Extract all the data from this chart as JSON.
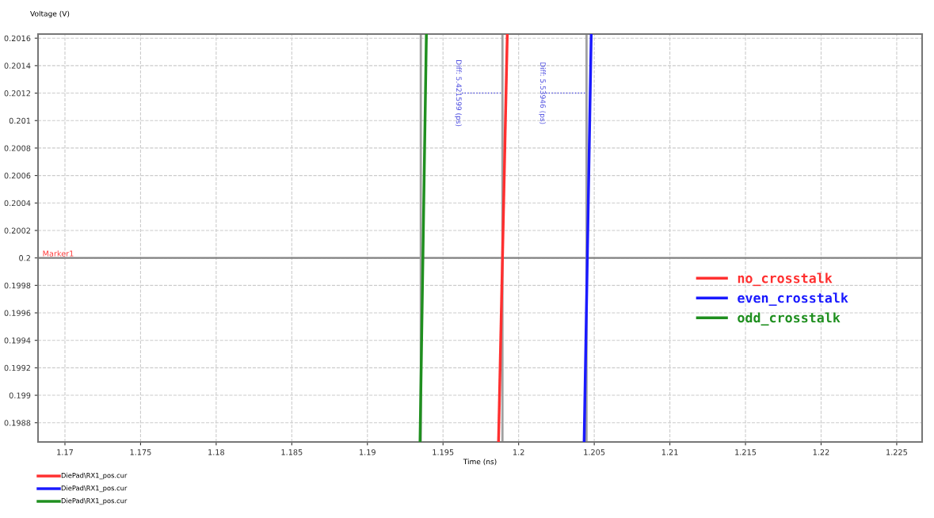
{
  "chart_data": {
    "type": "line",
    "xlabel": "Time (ns)",
    "ylabel": "Voltage (V)",
    "xlim": [
      1.16822,
      1.22668
    ],
    "xticks": [
      1.17,
      1.175,
      1.18,
      1.185,
      1.19,
      1.195,
      1.2,
      1.205,
      1.21,
      1.215,
      1.22,
      1.225
    ],
    "ylim": [
      0.19866,
      0.20163
    ],
    "yticks": [
      0.1988,
      0.199,
      0.1992,
      0.1994,
      0.1996,
      0.1998,
      0.2,
      0.2002,
      0.2004,
      0.2006,
      0.2008,
      0.201,
      0.2012,
      0.2014,
      0.2016
    ],
    "series": [
      {
        "name": "no_crosstalk",
        "color": "#ff3030",
        "x": [
          1.19867,
          1.19925
        ],
        "values": [
          0.19866,
          0.20163
        ]
      },
      {
        "name": "even_crosstalk",
        "color": "#1a1aff",
        "x": [
          1.20433,
          1.2048
        ],
        "values": [
          0.19866,
          0.20163
        ]
      },
      {
        "name": "odd_crosstalk",
        "color": "#1f8f1f",
        "x": [
          1.19348,
          1.1939
        ],
        "values": [
          0.19866,
          0.20163
        ]
      }
    ],
    "ref_lines": [
      {
        "axis": "y",
        "value": 0.2,
        "label": "Marker1",
        "color": "#808080"
      },
      {
        "axis": "x",
        "value": 1.19353,
        "label": null,
        "color": "#a0a0a0"
      },
      {
        "axis": "x",
        "value": 1.19893,
        "label": null,
        "color": "#a0a0a0"
      },
      {
        "axis": "x",
        "value": 1.20449,
        "label": null,
        "color": "#a0a0a0"
      }
    ],
    "annotations": [
      {
        "text": "Diff: 5.421599 (ps)",
        "x": 1.19893,
        "y": 0.2012
      },
      {
        "text": "Diff: 5.53946 (ps)",
        "x": 1.20449,
        "y": 0.2012
      },
      "DiePad\\RX1_pos.cur",
      "DiePad\\RX1_pos.cur",
      "DiePad\\RX1_pos.cur"
    ],
    "grid": true,
    "legend": "right",
    "line_style": "solid",
    "marker": "none"
  }
}
